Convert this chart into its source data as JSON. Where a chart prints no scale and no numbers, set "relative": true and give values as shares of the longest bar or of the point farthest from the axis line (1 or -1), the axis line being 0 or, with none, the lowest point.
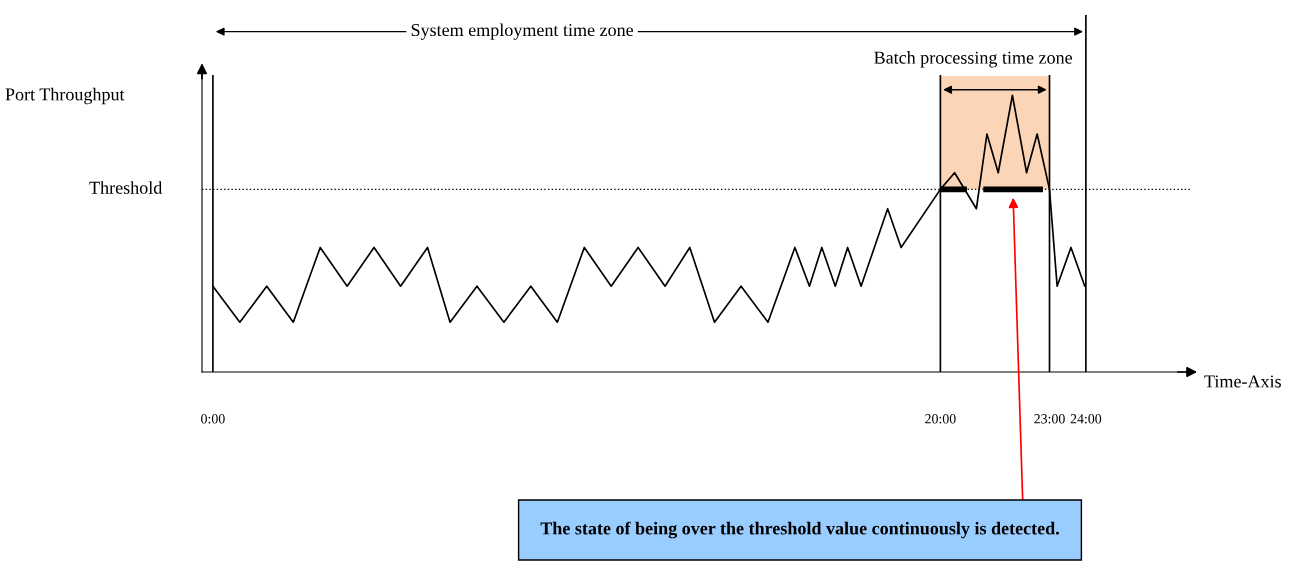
{
  "chart_data": {
    "type": "line",
    "relative": true,
    "xlabel": "Time-Axis",
    "ylabel": "Port Throughput",
    "x": [
      0,
      0.74,
      1.48,
      2.21,
      2.95,
      3.69,
      4.43,
      5.16,
      5.9,
      6.52,
      7.26,
      8.0,
      8.74,
      9.47,
      10.21,
      10.95,
      11.69,
      12.43,
      13.11,
      13.79,
      14.52,
      15.26,
      16.0,
      16.4,
      16.74,
      17.11,
      17.45,
      17.82,
      18.55,
      18.92,
      20,
      20.39,
      20.99,
      21.28,
      21.59,
      21.98,
      22.37,
      22.66,
      23,
      23.21,
      23.59,
      23.97
    ],
    "series": [
      {
        "color": "#000000",
        "values": [
          0.31,
          0.18,
          0.31,
          0.18,
          0.45,
          0.31,
          0.45,
          0.31,
          0.45,
          0.18,
          0.31,
          0.18,
          0.31,
          0.18,
          0.45,
          0.31,
          0.45,
          0.31,
          0.45,
          0.18,
          0.31,
          0.18,
          0.45,
          0.31,
          0.45,
          0.31,
          0.45,
          0.31,
          0.59,
          0.45,
          0.66,
          0.72,
          0.59,
          0.86,
          0.72,
          1,
          0.72,
          0.86,
          0.66,
          0.31,
          0.45,
          0.31
        ]
      },
      {
        "color": "#000000",
        "x": [
          20,
          20.73,
          20.9,
          21.18,
          22.82
        ],
        "values": [
          0.66,
          0.66,
          null,
          0.66,
          0.66
        ]
      }
    ],
    "xlim": [
      -0.3,
      27
    ],
    "xticks": [
      {
        "value": 0,
        "label": "0:00"
      },
      {
        "value": 20,
        "label": "20:00"
      },
      {
        "value": 23,
        "label": "23:00"
      },
      {
        "value": 24,
        "label": "24:00"
      }
    ],
    "ref_lines": [
      {
        "axis": "y",
        "value": 0.66,
        "label": "Threshold",
        "color": "#000000",
        "line_style": "dotted"
      },
      {
        "axis": "x",
        "value": 0,
        "color": "#000000",
        "line_style": "solid"
      },
      {
        "axis": "x",
        "value": 20,
        "color": "#000000",
        "line_style": "solid"
      },
      {
        "axis": "x",
        "value": 23,
        "color": "#000000",
        "line_style": "solid"
      },
      {
        "axis": "x",
        "value": 24,
        "color": "#000000",
        "line_style": "solid"
      }
    ],
    "bands": [
      {
        "axis": "x",
        "from": 20,
        "to": 23,
        "color": "#fbd5b5"
      }
    ],
    "annotations": [
      "System employment time zone",
      "Batch processing time zone",
      "The state of being over the threshold value continuously is detected."
    ],
    "grid": false,
    "legend": false,
    "marker": "none",
    "line_style": "solid"
  }
}
